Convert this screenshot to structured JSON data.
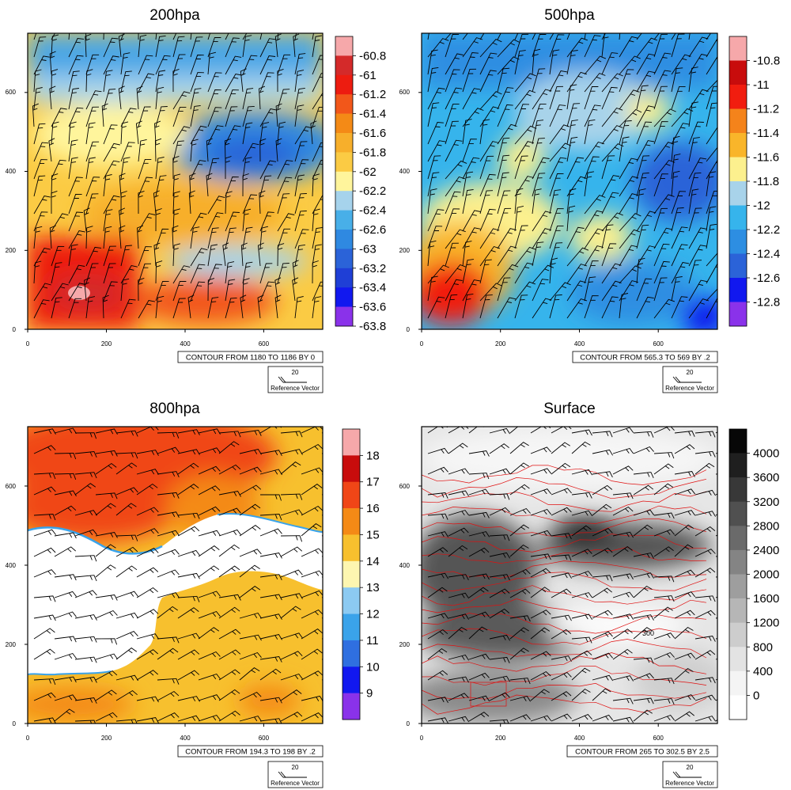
{
  "chart_data": [
    {
      "type": "heatmap",
      "title": "200hpa",
      "xlim": [
        0,
        750
      ],
      "ylim": [
        0,
        750
      ],
      "x_ticks": [
        0,
        200,
        400,
        600
      ],
      "y_ticks": [
        0,
        200,
        400,
        600
      ],
      "colorbar": {
        "labels": [
          "-60.8",
          "-61",
          "-61.2",
          "-61.4",
          "-61.6",
          "-61.8",
          "-62",
          "-62.2",
          "-62.4",
          "-62.6",
          "-63",
          "-63.2",
          "-63.4",
          "-63.6",
          "-63.8"
        ],
        "colors": [
          "#f6a8aa",
          "#d42a2a",
          "#ed1c10",
          "#f2571a",
          "#f48a16",
          "#f7af2b",
          "#fbcb44",
          "#fff59c",
          "#a6d3ec",
          "#48afe8",
          "#2f89e1",
          "#2b63d8",
          "#1f3fd6",
          "#1118ef",
          "#8a32ea"
        ]
      },
      "info": "CONTOUR FROM 1180 TO 1186 BY 0",
      "ref_value": "20",
      "ref_label": "Reference Vector"
    },
    {
      "type": "heatmap",
      "title": "500hpa",
      "xlim": [
        0,
        750
      ],
      "ylim": [
        0,
        750
      ],
      "x_ticks": [
        0,
        200,
        400,
        600
      ],
      "y_ticks": [
        0,
        200,
        400,
        600
      ],
      "colorbar": {
        "labels": [
          "-10.8",
          "-11",
          "-11.2",
          "-11.4",
          "-11.6",
          "-11.8",
          "-12",
          "-12.2",
          "-12.4",
          "-12.6",
          "-12.8"
        ],
        "colors": [
          "#f6a8aa",
          "#c80c0c",
          "#f11d0f",
          "#f4831b",
          "#f9b52a",
          "#fcf08e",
          "#a8d3ea",
          "#36b4ec",
          "#2d8ee2",
          "#2b63d8",
          "#1118ef",
          "#8a32ea"
        ]
      },
      "info": "CONTOUR FROM 565.3 TO 569 BY .2",
      "ref_value": "20",
      "ref_label": "Reference Vector"
    },
    {
      "type": "heatmap",
      "title": "800hpa",
      "xlim": [
        0,
        750
      ],
      "ylim": [
        0,
        750
      ],
      "x_ticks": [
        0,
        200,
        400,
        600
      ],
      "y_ticks": [
        0,
        200,
        400,
        600
      ],
      "colorbar": {
        "labels": [
          "18",
          "17",
          "16",
          "15",
          "14",
          "13",
          "12",
          "11",
          "10",
          "9"
        ],
        "colors": [
          "#f6a8aa",
          "#c80c0c",
          "#f04617",
          "#f48a16",
          "#f7c02e",
          "#fdf6b0",
          "#8ccaf2",
          "#3aa3ea",
          "#2f6fe0",
          "#1118ef",
          "#8a32ea"
        ]
      },
      "info": "CONTOUR FROM 194.3 TO 198 BY .2",
      "ref_value": "20",
      "ref_label": "Reference Vector"
    },
    {
      "type": "heatmap",
      "title": "Surface",
      "xlim": [
        0,
        750
      ],
      "ylim": [
        0,
        750
      ],
      "x_ticks": [
        0,
        200,
        400,
        600
      ],
      "y_ticks": [
        0,
        200,
        400,
        600
      ],
      "colorbar": {
        "labels": [
          "4000",
          "3600",
          "3200",
          "2800",
          "2400",
          "2000",
          "1600",
          "1200",
          "800",
          "400",
          "0"
        ],
        "colors": [
          "#070707",
          "#1f1f1f",
          "#383838",
          "#505050",
          "#6a6a6a",
          "#848484",
          "#9e9e9e",
          "#b6b6b6",
          "#cdcdcd",
          "#e3e3e3",
          "#f4f4f4",
          "#ffffff"
        ]
      },
      "contour_label": "300",
      "info": "CONTOUR FROM 265 TO 302.5 BY 2.5",
      "ref_value": "20",
      "ref_label": "Reference Vector"
    }
  ]
}
